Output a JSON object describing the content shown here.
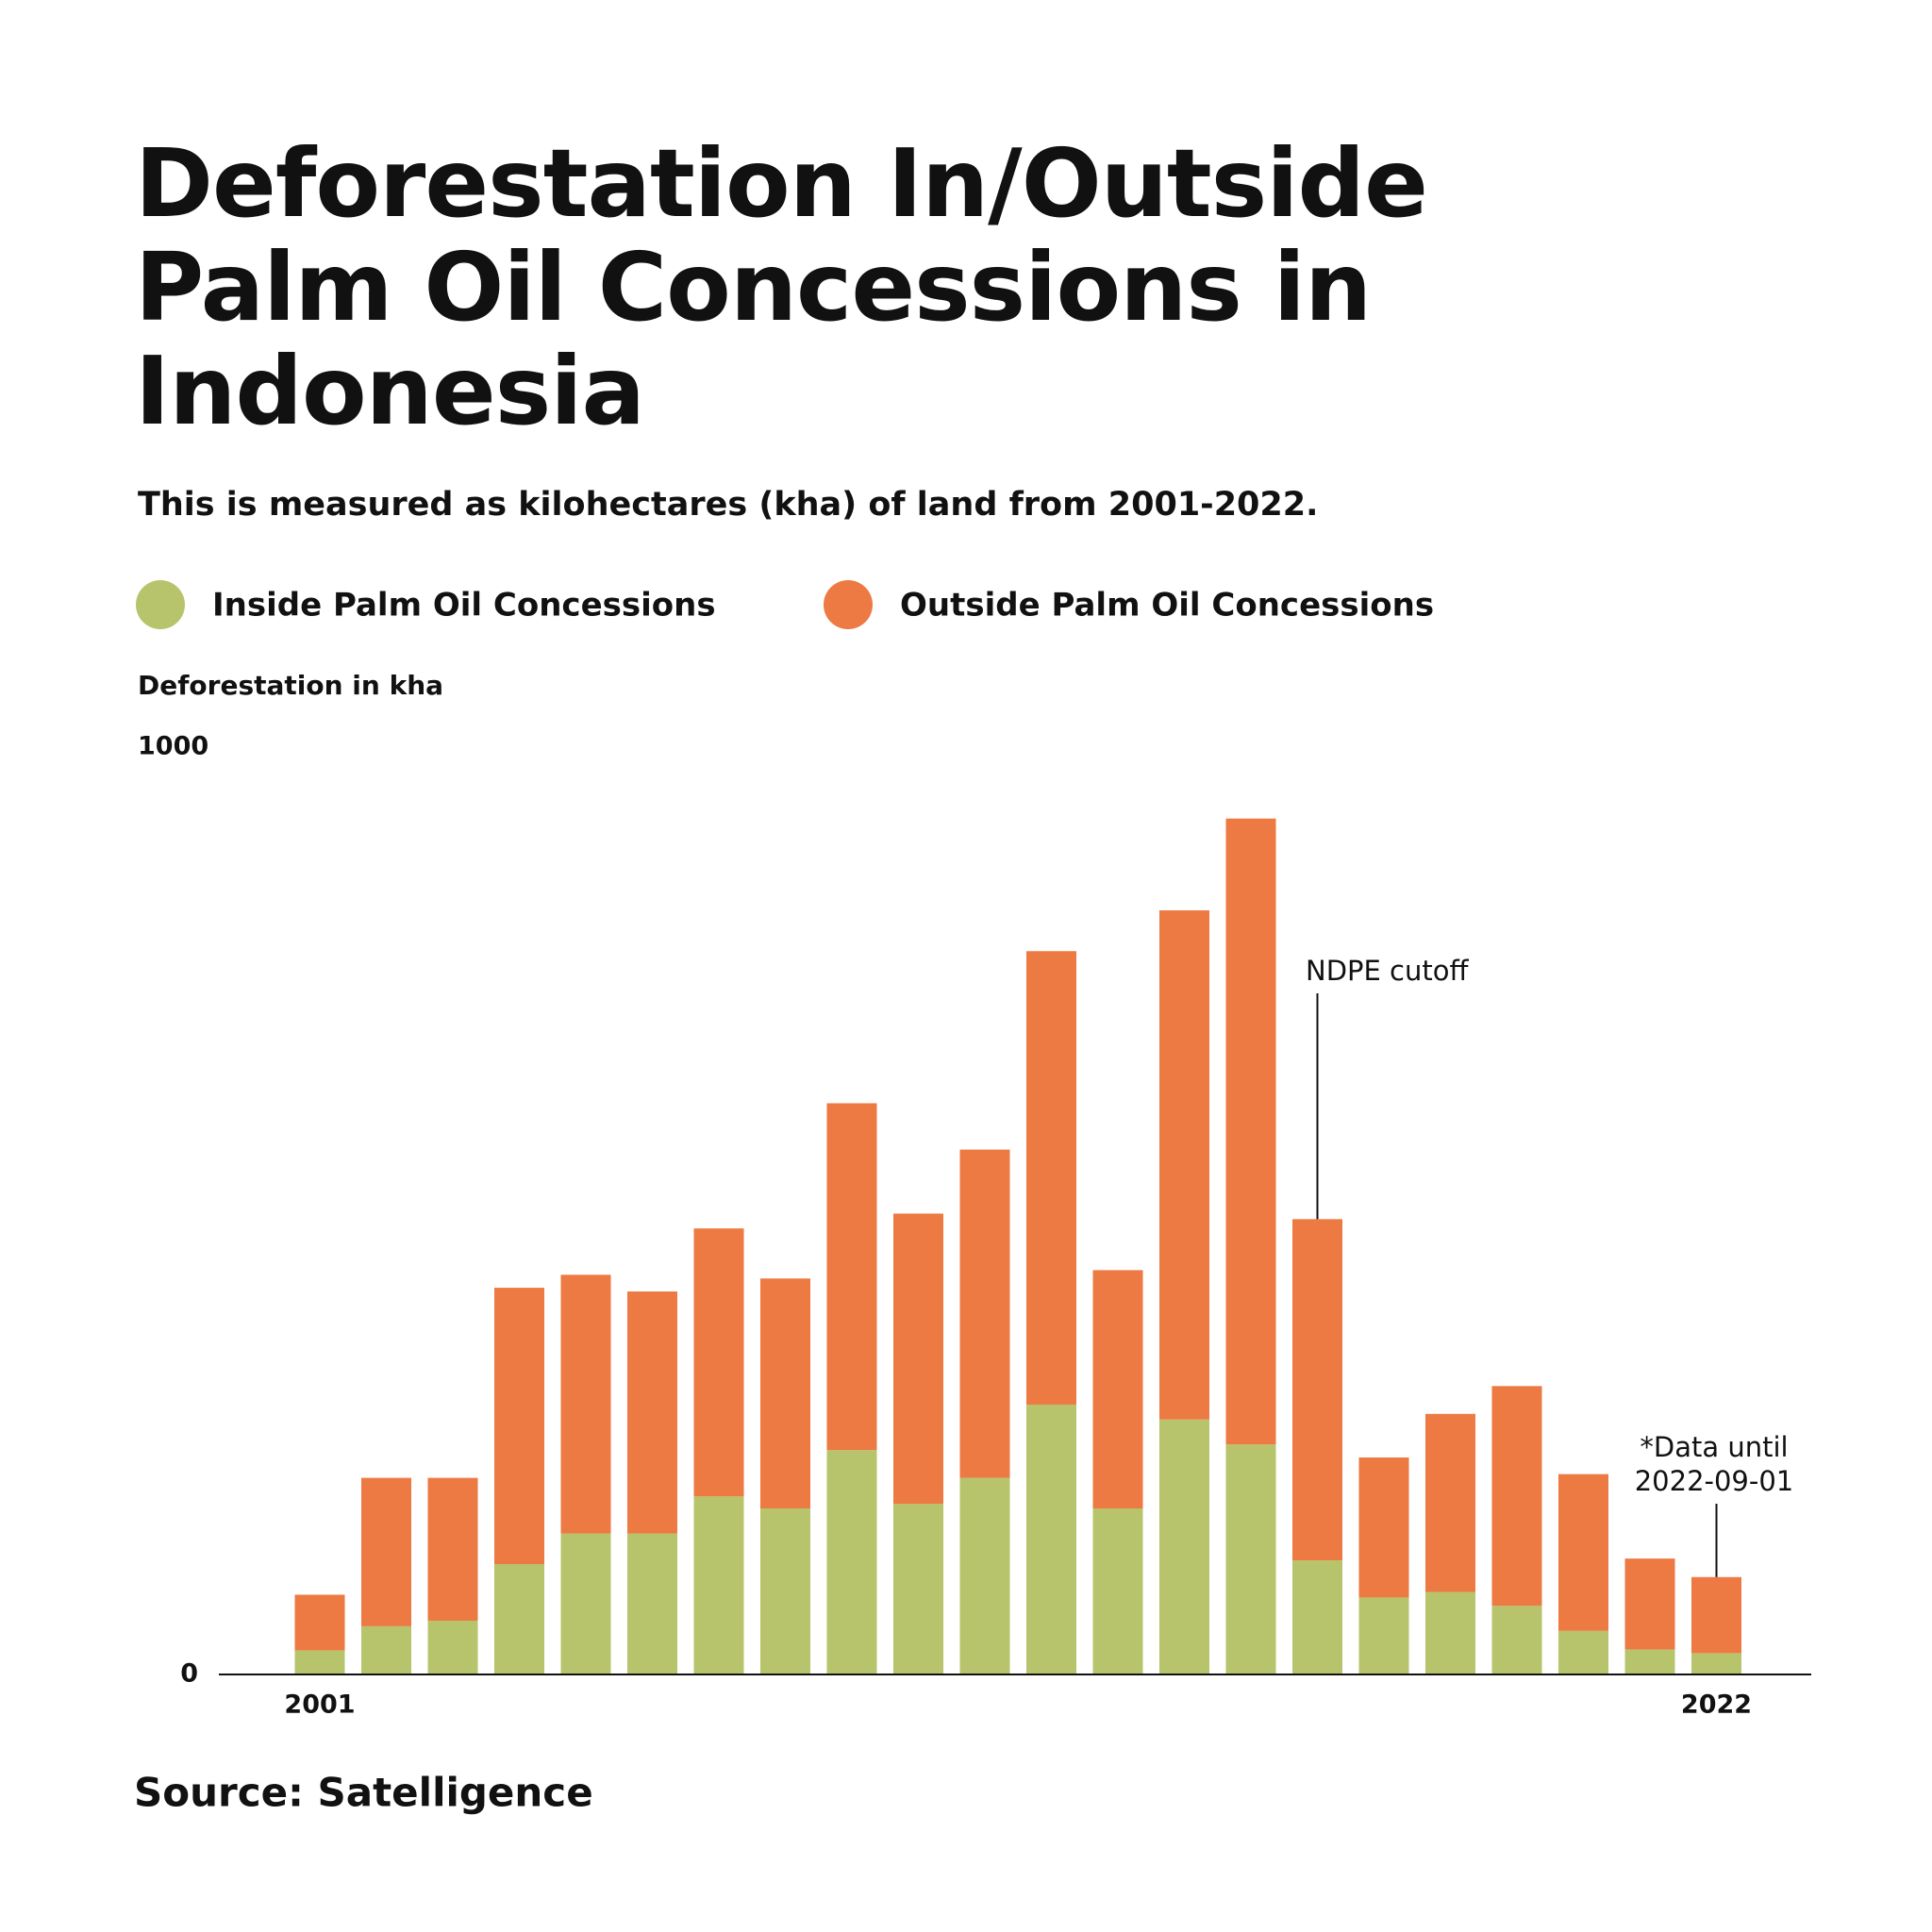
{
  "chart_data": {
    "type": "stacked_bar",
    "title": "Deforestation In/Outside Palm Oil Concessions in Indonesia",
    "subtitle": "This is measured as kilohectares (kha) of land from 2001-2022.",
    "y_label": "Deforestation in kha",
    "source": "Source: Satelligence",
    "categories": [
      "2001",
      null,
      null,
      null,
      null,
      null,
      null,
      null,
      null,
      null,
      null,
      null,
      null,
      null,
      null,
      null,
      null,
      null,
      null,
      null,
      null,
      "2022"
    ],
    "series": [
      {
        "name": "Inside Palm Oil Concessions",
        "color": "#b7c46b",
        "values": [
          26,
          52,
          58,
          119,
          152,
          152,
          192,
          179,
          242,
          184,
          212,
          291,
          179,
          275,
          248,
          123,
          83,
          89,
          74,
          47,
          27,
          23
        ]
      },
      {
        "name": "Outside Palm Oil Concessions",
        "color": "#ec7a42",
        "values": [
          60,
          160,
          154,
          298,
          279,
          261,
          289,
          248,
          374,
          313,
          354,
          489,
          257,
          549,
          675,
          368,
          151,
          192,
          237,
          169,
          98,
          82
        ]
      }
    ],
    "ylim": [
      0,
      1000
    ],
    "yticks": [
      0,
      1000
    ],
    "grid": false,
    "annotations": [
      {
        "text": [
          "NDPE cutoff"
        ]
      },
      {
        "text": [
          "*Data until",
          "2022-09-01"
        ]
      }
    ]
  }
}
